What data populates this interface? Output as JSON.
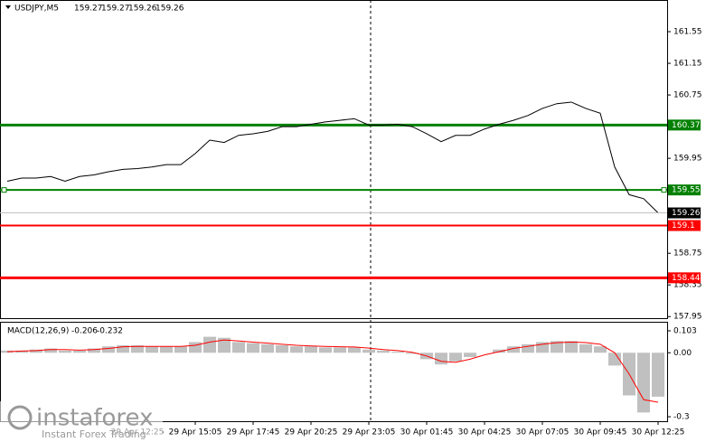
{
  "chart_data": [
    {
      "type": "line",
      "title": "USDJPY,M5",
      "ohlc": [
        159.27,
        159.27,
        159.26,
        159.26
      ],
      "categories": [
        null,
        null,
        null,
        null,
        null,
        null,
        null,
        null,
        null,
        "29 Apr 12:25",
        null,
        null,
        null,
        "29 Apr 15:05",
        null,
        null,
        null,
        "29 Apr 17:45",
        null,
        null,
        null,
        "29 Apr 20:25",
        null,
        null,
        null,
        "29 Apr 23:05",
        null,
        null,
        null,
        "30 Apr 01:45",
        null,
        null,
        null,
        "30 Apr 04:25",
        null,
        null,
        null,
        "30 Apr 07:05",
        null,
        null,
        null,
        "30 Apr 09:45",
        null,
        null,
        null,
        "30 Apr 12:25"
      ],
      "series": [
        {
          "color": "#000000",
          "values": [
            159.66,
            159.7,
            159.7,
            159.72,
            159.66,
            159.72,
            159.74,
            159.78,
            159.81,
            159.82,
            159.84,
            159.87,
            159.87,
            160.01,
            160.18,
            160.15,
            160.24,
            160.26,
            160.29,
            160.35,
            160.35,
            160.38,
            160.41,
            160.43,
            160.45,
            160.37,
            160.37,
            160.38,
            160.35,
            160.26,
            160.16,
            160.24,
            160.24,
            160.32,
            160.38,
            160.43,
            160.49,
            160.58,
            160.64,
            160.66,
            160.58,
            160.52,
            159.84,
            159.49,
            159.44,
            159.26
          ]
        }
      ],
      "levels": [
        {
          "value": 160.37,
          "color": "#008000"
        },
        {
          "value": 159.55,
          "color": "#008000"
        },
        {
          "value": 159.1,
          "color": "#ff0000"
        },
        {
          "value": 158.44,
          "color": "#ff0000"
        }
      ],
      "ylim": [
        157.93,
        161.95
      ],
      "yticks": [
        161.55,
        161.15,
        160.75,
        159.95,
        158.75,
        158.35,
        157.95
      ]
    },
    {
      "type": "macd",
      "title": "MACD(12,26,9)",
      "series": [
        {
          "color": "#c0c0c0",
          "values": [
            0.01,
            0.01,
            0.015,
            0.02,
            0.01,
            0.01,
            0.02,
            0.03,
            0.035,
            0.035,
            0.03,
            0.03,
            0.03,
            0.05,
            0.075,
            0.07,
            0.05,
            0.045,
            0.04,
            0.035,
            0.03,
            0.03,
            0.025,
            0.025,
            0.025,
            0.015,
            0.01,
            0.005,
            -0.005,
            -0.03,
            -0.055,
            -0.04,
            -0.02,
            0.0,
            0.015,
            0.03,
            0.04,
            0.05,
            0.055,
            0.055,
            0.04,
            0.03,
            -0.06,
            -0.2,
            -0.28,
            -0.206
          ]
        },
        {
          "color": "#ff0000",
          "values": [
            0.005,
            0.008,
            0.01,
            0.015,
            0.015,
            0.012,
            0.015,
            0.02,
            0.028,
            0.03,
            0.03,
            0.03,
            0.03,
            0.035,
            0.05,
            0.06,
            0.055,
            0.05,
            0.045,
            0.04,
            0.035,
            0.032,
            0.03,
            0.028,
            0.027,
            0.022,
            0.015,
            0.01,
            0.002,
            -0.015,
            -0.04,
            -0.045,
            -0.03,
            -0.01,
            0.005,
            0.02,
            0.03,
            0.04,
            0.047,
            0.05,
            0.048,
            0.04,
            0.0,
            -0.1,
            -0.22,
            -0.232
          ]
        }
      ],
      "ylim": [
        -0.321,
        0.141
      ],
      "yticks": [
        0.103,
        {
          "value": 0,
          "label": "0.00"
        },
        -0.3
      ]
    }
  ],
  "watermark": "instaforex",
  "watermark_sub": "Instant Forex Trading"
}
